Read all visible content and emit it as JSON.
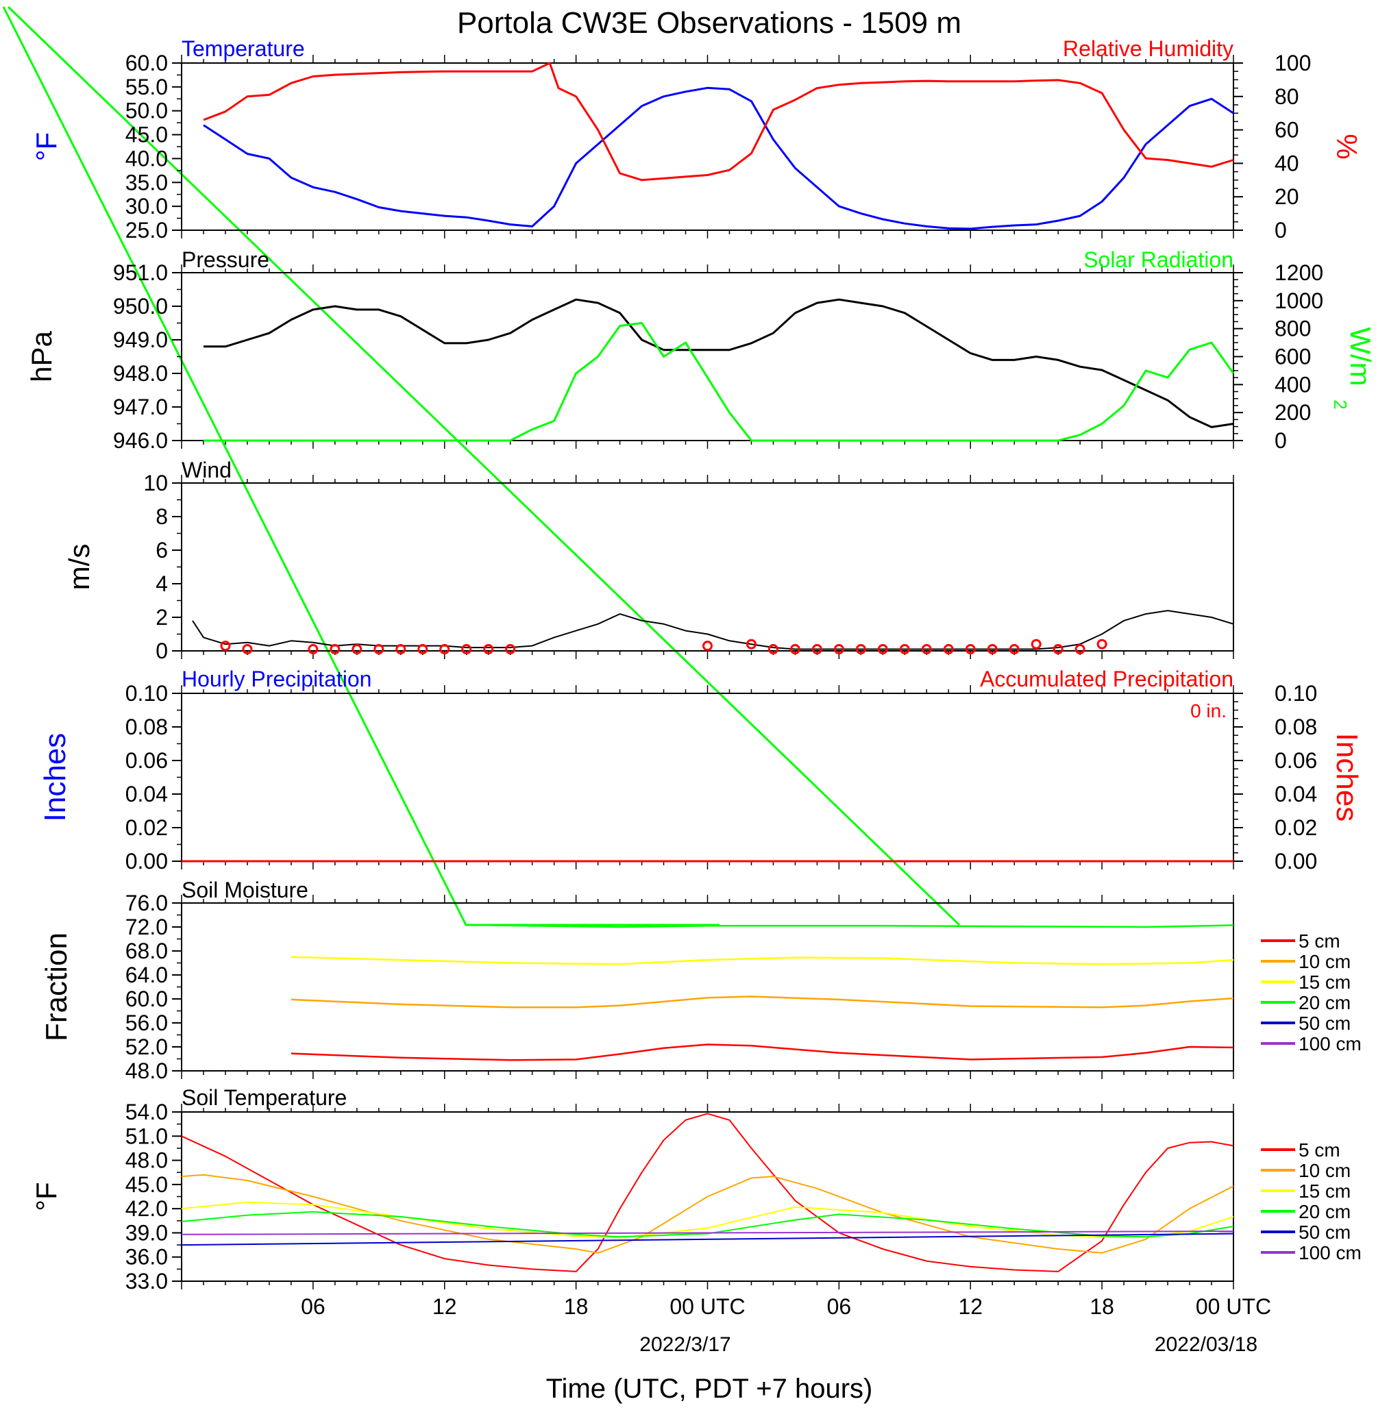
{
  "title": "Portola CW3E Observations - 1509 m",
  "xlabel": "Time (UTC, PDT +7 hours)",
  "x_ticks": [
    "06",
    "12",
    "18",
    "00 UTC",
    "06",
    "12",
    "18",
    "00 UTC"
  ],
  "x_dates": [
    "2022/3/17",
    "2022/03/18"
  ],
  "colors": {
    "temperature": "#0000ff",
    "humidity": "#ff0000",
    "pressure": "#000000",
    "solar": "#00ff00",
    "wind": "#000000",
    "barb": "#ff0000",
    "soil_5": "#ff0000",
    "soil_10": "#ffa500",
    "soil_15": "#ffff00",
    "soil_20": "#00ff00",
    "soil_50": "#0000cc",
    "soil_100": "#9933cc"
  },
  "panels": {
    "temp_rh": {
      "left_label": "Temperature",
      "right_label": "Relative Humidity",
      "left_unit": "°F",
      "right_unit": "%",
      "left_ticks": [
        "60.0",
        "55.0",
        "50.0",
        "45.0",
        "40.0",
        "35.0",
        "30.0",
        "25.0"
      ],
      "right_ticks": [
        "100",
        "80",
        "60",
        "40",
        "20",
        "0"
      ]
    },
    "pressure": {
      "left_label": "Pressure",
      "right_label": "Solar Radiation",
      "left_unit": "hPa",
      "right_unit": "W/m",
      "right_unit_sup": "2",
      "left_ticks": [
        "951.0",
        "950.0",
        "949.0",
        "948.0",
        "947.0",
        "946.0"
      ],
      "right_ticks": [
        "1200",
        "1000",
        "800",
        "600",
        "400",
        "200",
        "0"
      ]
    },
    "wind": {
      "left_label": "Wind",
      "left_unit": "m/s",
      "left_ticks": [
        "10",
        "8",
        "6",
        "4",
        "2",
        "0"
      ]
    },
    "precip": {
      "left_label": "Hourly Precipitation",
      "right_label": "Accumulated Precipitation",
      "accum_value": "0 in.",
      "left_unit": "Inches",
      "right_unit": "Inches",
      "left_ticks": [
        "0.10",
        "0.08",
        "0.06",
        "0.04",
        "0.02",
        "0.00"
      ],
      "right_ticks": [
        "0.10",
        "0.08",
        "0.06",
        "0.04",
        "0.02",
        "0.00"
      ]
    },
    "soil_moisture": {
      "left_label": "Soil Moisture",
      "left_unit": "Fraction",
      "left_ticks": [
        "76.0",
        "72.0",
        "68.0",
        "64.0",
        "60.0",
        "56.0",
        "52.0",
        "48.0"
      ],
      "legend": [
        "5 cm",
        "10 cm",
        "15 cm",
        "20 cm",
        "50 cm",
        "100 cm"
      ]
    },
    "soil_temp": {
      "left_label": "Soil Temperature",
      "left_unit": "°F",
      "left_ticks": [
        "54.0",
        "51.0",
        "48.0",
        "45.0",
        "42.0",
        "39.0",
        "36.0",
        "33.0"
      ],
      "legend": [
        "5 cm",
        "10 cm",
        "15 cm",
        "20 cm",
        "50 cm",
        "100 cm"
      ]
    }
  },
  "chart_data": [
    {
      "type": "line",
      "panel": "temp_rh",
      "x_unit": "hours since 2022-03-16 00 UTC",
      "ylim_left": [
        25,
        60
      ],
      "ylim_right": [
        0,
        100
      ],
      "series": [
        {
          "name": "Temperature",
          "axis": "left",
          "x": [
            1,
            2,
            3,
            4,
            5,
            6,
            7,
            8,
            9,
            10,
            11,
            12,
            13,
            14,
            15,
            16,
            17,
            18,
            19,
            20,
            21,
            22,
            23,
            24,
            25,
            26,
            27,
            28,
            29,
            30,
            31,
            32,
            33,
            34,
            35,
            36,
            37,
            38,
            39,
            40,
            41,
            42,
            43,
            44,
            45,
            46,
            47,
            48
          ],
          "y": [
            47,
            44,
            41,
            40,
            36,
            34,
            33,
            31.5,
            29.8,
            29,
            28.5,
            28,
            27.7,
            27,
            26.2,
            25.8,
            30,
            39,
            43,
            47,
            51,
            53,
            54,
            54.8,
            54.5,
            52,
            44,
            38,
            34,
            30,
            28.5,
            27.3,
            26.4,
            25.8,
            25.4,
            25.3,
            25.7,
            26,
            26.2,
            27,
            28,
            31,
            36,
            43,
            47,
            51,
            52.5,
            49.5
          ]
        },
        {
          "name": "Relative Humidity",
          "axis": "right",
          "x": [
            1,
            2,
            3,
            4,
            5,
            6,
            7,
            8,
            9,
            10,
            11,
            12,
            13,
            14,
            15,
            16,
            16.8,
            17.2,
            18,
            19,
            20,
            21,
            22,
            23,
            24,
            25,
            26,
            27,
            28,
            29,
            30,
            31,
            32,
            33,
            34,
            35,
            36,
            37,
            38,
            39,
            40,
            41,
            42,
            43,
            44,
            45,
            46,
            47,
            48
          ],
          "y": [
            66,
            71,
            80,
            81,
            88,
            92,
            93,
            93.5,
            94,
            94.5,
            94.8,
            95,
            95,
            95,
            95,
            95,
            100,
            85,
            80,
            60,
            34,
            30,
            31,
            32,
            33,
            36,
            46,
            72,
            78,
            85,
            87,
            88,
            88.5,
            89,
            89.3,
            89,
            89,
            89,
            89,
            89.5,
            89.8,
            88,
            82,
            60,
            43,
            42,
            40,
            38,
            42
          ]
        }
      ]
    },
    {
      "type": "line",
      "panel": "pressure",
      "x_unit": "hours since 2022-03-16 00 UTC",
      "ylim_left": [
        946,
        951
      ],
      "ylim_right": [
        0,
        1200
      ],
      "series": [
        {
          "name": "Pressure",
          "axis": "left",
          "x": [
            1,
            2,
            3,
            4,
            5,
            6,
            7,
            8,
            9,
            10,
            11,
            12,
            13,
            14,
            15,
            16,
            17,
            18,
            19,
            20,
            21,
            22,
            23,
            24,
            25,
            26,
            27,
            28,
            29,
            30,
            31,
            32,
            33,
            34,
            35,
            36,
            37,
            38,
            39,
            40,
            41,
            42,
            43,
            44,
            45,
            46,
            47,
            48
          ],
          "y": [
            948.8,
            948.8,
            949,
            949.2,
            949.6,
            949.9,
            950,
            949.9,
            949.9,
            949.7,
            949.3,
            948.9,
            948.9,
            949,
            949.2,
            949.6,
            949.9,
            950.2,
            950.1,
            949.8,
            949,
            948.7,
            948.7,
            948.7,
            948.7,
            948.9,
            949.2,
            949.8,
            950.1,
            950.2,
            950.1,
            950,
            949.8,
            949.4,
            949,
            948.6,
            948.4,
            948.4,
            948.5,
            948.4,
            948.2,
            948.1,
            947.8,
            947.5,
            947.2,
            946.7,
            946.4,
            946.5
          ]
        },
        {
          "name": "Solar Radiation",
          "axis": "right",
          "x": [
            1,
            2,
            3,
            4,
            5,
            6,
            7,
            8,
            9,
            10,
            11,
            12,
            13,
            14,
            15,
            16,
            17,
            18,
            19,
            20,
            21,
            22,
            23,
            24,
            25,
            26,
            27,
            28,
            29,
            30,
            31,
            32,
            33,
            34,
            35,
            36,
            37,
            38,
            39,
            40,
            41,
            42,
            43,
            44,
            45,
            46,
            47,
            48
          ],
          "y": [
            0,
            0,
            0,
            0,
            0,
            0,
            0,
            0,
            0,
            0,
            0,
            0,
            0,
            0,
            0,
            80,
            140,
            480,
            600,
            820,
            840,
            600,
            700,
            450,
            200,
            0,
            0,
            0,
            0,
            0,
            0,
            0,
            0,
            0,
            0,
            0,
            0,
            0,
            0,
            0,
            40,
            120,
            250,
            500,
            450,
            650,
            700,
            480
          ]
        }
      ]
    },
    {
      "type": "line",
      "panel": "wind",
      "x_unit": "hours since 2022-03-16 00 UTC",
      "ylim": [
        0,
        10
      ],
      "series": [
        {
          "name": "Wind",
          "x": [
            0.5,
            1,
            2,
            3,
            4,
            5,
            6,
            7,
            8,
            9,
            10,
            11,
            12,
            13,
            14,
            15,
            16,
            17,
            18,
            19,
            20,
            21,
            22,
            23,
            24,
            25,
            26,
            27,
            28,
            29,
            30,
            31,
            32,
            33,
            34,
            35,
            36,
            37,
            38,
            39,
            40,
            41,
            42,
            43,
            44,
            45,
            46,
            47,
            48
          ],
          "y": [
            1.8,
            0.8,
            0.4,
            0.5,
            0.3,
            0.6,
            0.5,
            0.3,
            0.4,
            0.3,
            0.3,
            0.3,
            0.3,
            0.2,
            0.2,
            0.2,
            0.3,
            0.8,
            1.2,
            1.6,
            2.2,
            1.8,
            1.6,
            1.2,
            1.0,
            0.6,
            0.4,
            0.2,
            0.1,
            0.1,
            0.1,
            0.1,
            0.1,
            0.1,
            0.1,
            0.1,
            0.1,
            0.1,
            0.1,
            0.1,
            0.2,
            0.4,
            1.0,
            1.8,
            2.2,
            2.4,
            2.2,
            2.0,
            1.6
          ]
        }
      ]
    },
    {
      "type": "line",
      "panel": "precip",
      "x_unit": "hours since 2022-03-16 00 UTC",
      "ylim": [
        0,
        0.1
      ],
      "series": [
        {
          "name": "Hourly Precipitation",
          "x": [
            0,
            48
          ],
          "y": [
            0,
            0
          ]
        },
        {
          "name": "Accumulated Precipitation",
          "x": [
            0,
            48
          ],
          "y": [
            0,
            0
          ]
        }
      ]
    },
    {
      "type": "line",
      "panel": "soil_moisture",
      "x_unit": "hours since 2022-03-16 00 UTC",
      "ylim": [
        48,
        76
      ],
      "series": [
        {
          "name": "5 cm",
          "x": [
            5,
            10,
            15,
            18,
            20,
            22,
            24,
            26,
            30,
            36,
            42,
            44,
            46,
            48
          ],
          "y": [
            50.9,
            50.2,
            49.8,
            49.9,
            50.8,
            51.8,
            52.4,
            52.2,
            51.0,
            49.9,
            50.3,
            51.0,
            52.0,
            51.9
          ]
        },
        {
          "name": "10 cm",
          "x": [
            5,
            10,
            15,
            18,
            20,
            24,
            26,
            30,
            36,
            42,
            44,
            46,
            48
          ],
          "y": [
            59.9,
            59.1,
            58.6,
            58.6,
            58.9,
            60.2,
            60.4,
            59.9,
            58.8,
            58.6,
            58.9,
            59.6,
            60.1
          ]
        },
        {
          "name": "15 cm",
          "x": [
            5,
            10,
            15,
            20,
            24,
            28,
            32,
            38,
            42,
            46,
            48
          ],
          "y": [
            67.0,
            66.5,
            66.0,
            65.8,
            66.5,
            66.9,
            66.8,
            66.0,
            65.8,
            66.0,
            66.5
          ]
        },
        {
          "name": "20 cm",
          "x": [
            14,
            20,
            24,
            32,
            38,
            44,
            48
          ],
          "y": [
            72.3,
            72.0,
            72.2,
            72.2,
            72.1,
            72.0,
            72.3
          ]
        }
      ]
    },
    {
      "type": "line",
      "panel": "soil_temp",
      "x_unit": "hours since 2022-03-16 00 UTC",
      "ylim": [
        33,
        54
      ],
      "series": [
        {
          "name": "5 cm",
          "x": [
            0,
            2,
            4,
            6,
            8,
            10,
            12,
            14,
            16,
            18,
            19,
            20,
            21,
            22,
            23,
            24,
            25,
            26,
            28,
            30,
            32,
            34,
            36,
            38,
            40,
            42,
            43,
            44,
            45,
            46,
            47,
            48
          ],
          "y": [
            51,
            48.5,
            45.5,
            42.5,
            40.0,
            37.5,
            35.8,
            35.0,
            34.5,
            34.2,
            37.0,
            42.0,
            46.5,
            50.5,
            53.0,
            53.8,
            53.0,
            49.5,
            43.0,
            39.0,
            37.0,
            35.5,
            34.8,
            34.4,
            34.2,
            38.0,
            42.5,
            46.5,
            49.5,
            50.2,
            50.3,
            49.8
          ]
        },
        {
          "name": "10 cm",
          "x": [
            0,
            1,
            3,
            6,
            10,
            14,
            18,
            19,
            21,
            24,
            26,
            27,
            29,
            32,
            36,
            40,
            42,
            44,
            46,
            48
          ],
          "y": [
            46,
            46.2,
            45.5,
            43.5,
            40.5,
            38.2,
            37.0,
            36.5,
            38.5,
            43.5,
            45.8,
            46.0,
            44.5,
            41.5,
            38.5,
            37.0,
            36.5,
            38.2,
            42.0,
            44.8
          ]
        },
        {
          "name": "15 cm",
          "x": [
            0,
            3,
            6,
            10,
            14,
            18,
            20,
            24,
            28,
            32,
            36,
            40,
            42,
            44,
            46,
            48
          ],
          "y": [
            42.0,
            42.8,
            42.5,
            41.0,
            39.5,
            38.6,
            38.4,
            39.6,
            42.2,
            41.5,
            39.8,
            38.7,
            38.5,
            38.5,
            39.2,
            41.0
          ]
        },
        {
          "name": "20 cm",
          "x": [
            0,
            3,
            6,
            10,
            14,
            18,
            20,
            24,
            28,
            30,
            34,
            38,
            42,
            44,
            46,
            48
          ],
          "y": [
            40.4,
            41.2,
            41.6,
            41.0,
            39.8,
            38.8,
            38.5,
            38.9,
            40.6,
            41.3,
            40.6,
            39.5,
            38.6,
            38.5,
            38.9,
            39.8
          ]
        },
        {
          "name": "50 cm",
          "x": [
            0,
            48
          ],
          "y": [
            37.5,
            38.9
          ]
        },
        {
          "name": "100 cm",
          "x": [
            0,
            48
          ],
          "y": [
            38.8,
            39.2
          ]
        }
      ]
    },
    {
      "type": "scatter",
      "panel": "wind_calm",
      "x_unit": "hours since 2022-03-16 00 UTC",
      "x": [
        2,
        3,
        6,
        7,
        8,
        9,
        10,
        11,
        12,
        13,
        14,
        15,
        24,
        26,
        27,
        28,
        29,
        30,
        31,
        32,
        33,
        34,
        35,
        36,
        37,
        38,
        39,
        40,
        41,
        42
      ],
      "y": [
        0.3,
        0.1,
        0.1,
        0.1,
        0.1,
        0.1,
        0.1,
        0.1,
        0.1,
        0.1,
        0.1,
        0.1,
        0.3,
        0.4,
        0.1,
        0.1,
        0.1,
        0.1,
        0.1,
        0.1,
        0.1,
        0.1,
        0.1,
        0.1,
        0.1,
        0.1,
        0.4,
        0.1,
        0.1,
        0.4
      ]
    }
  ]
}
